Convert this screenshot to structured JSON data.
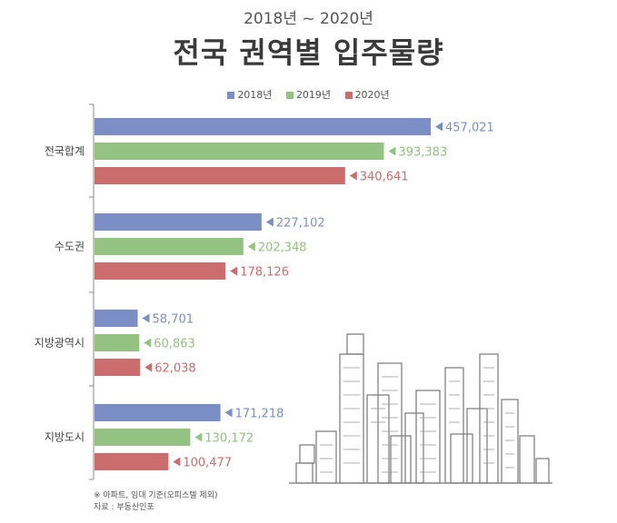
{
  "header": {
    "subtitle": "2018년 ~ 2020년",
    "title": "전국 권역별 입주물량"
  },
  "notes": {
    "note": "※ 아파트, 임대 기준(오피스텔 제외)",
    "source": "자료 : 부동산인포"
  },
  "illustration": "city-skyline-icon",
  "chart_data": {
    "type": "bar",
    "orientation": "horizontal",
    "categories": [
      "전국합계",
      "수도권",
      "지방광역시",
      "지방도시"
    ],
    "series": [
      {
        "name": "2018년",
        "color": "#7b8fc6",
        "values": [
          457021,
          227102,
          58701,
          171218
        ],
        "labels": [
          "457,021",
          "227,102",
          "58,701",
          "171,218"
        ]
      },
      {
        "name": "2019년",
        "color": "#94c282",
        "values": [
          393383,
          202348,
          60863,
          130172
        ],
        "labels": [
          "393,383",
          "202,348",
          "60,863",
          "130,172"
        ]
      },
      {
        "name": "2020년",
        "color": "#cb6d6d",
        "values": [
          340641,
          178126,
          62038,
          100477
        ],
        "labels": [
          "340,641",
          "178,126",
          "62,038",
          "100,477"
        ]
      }
    ],
    "title": "전국 권역별 입주물량",
    "subtitle": "2018년 ~ 2020년",
    "legend": "top-center",
    "grid": false
  }
}
